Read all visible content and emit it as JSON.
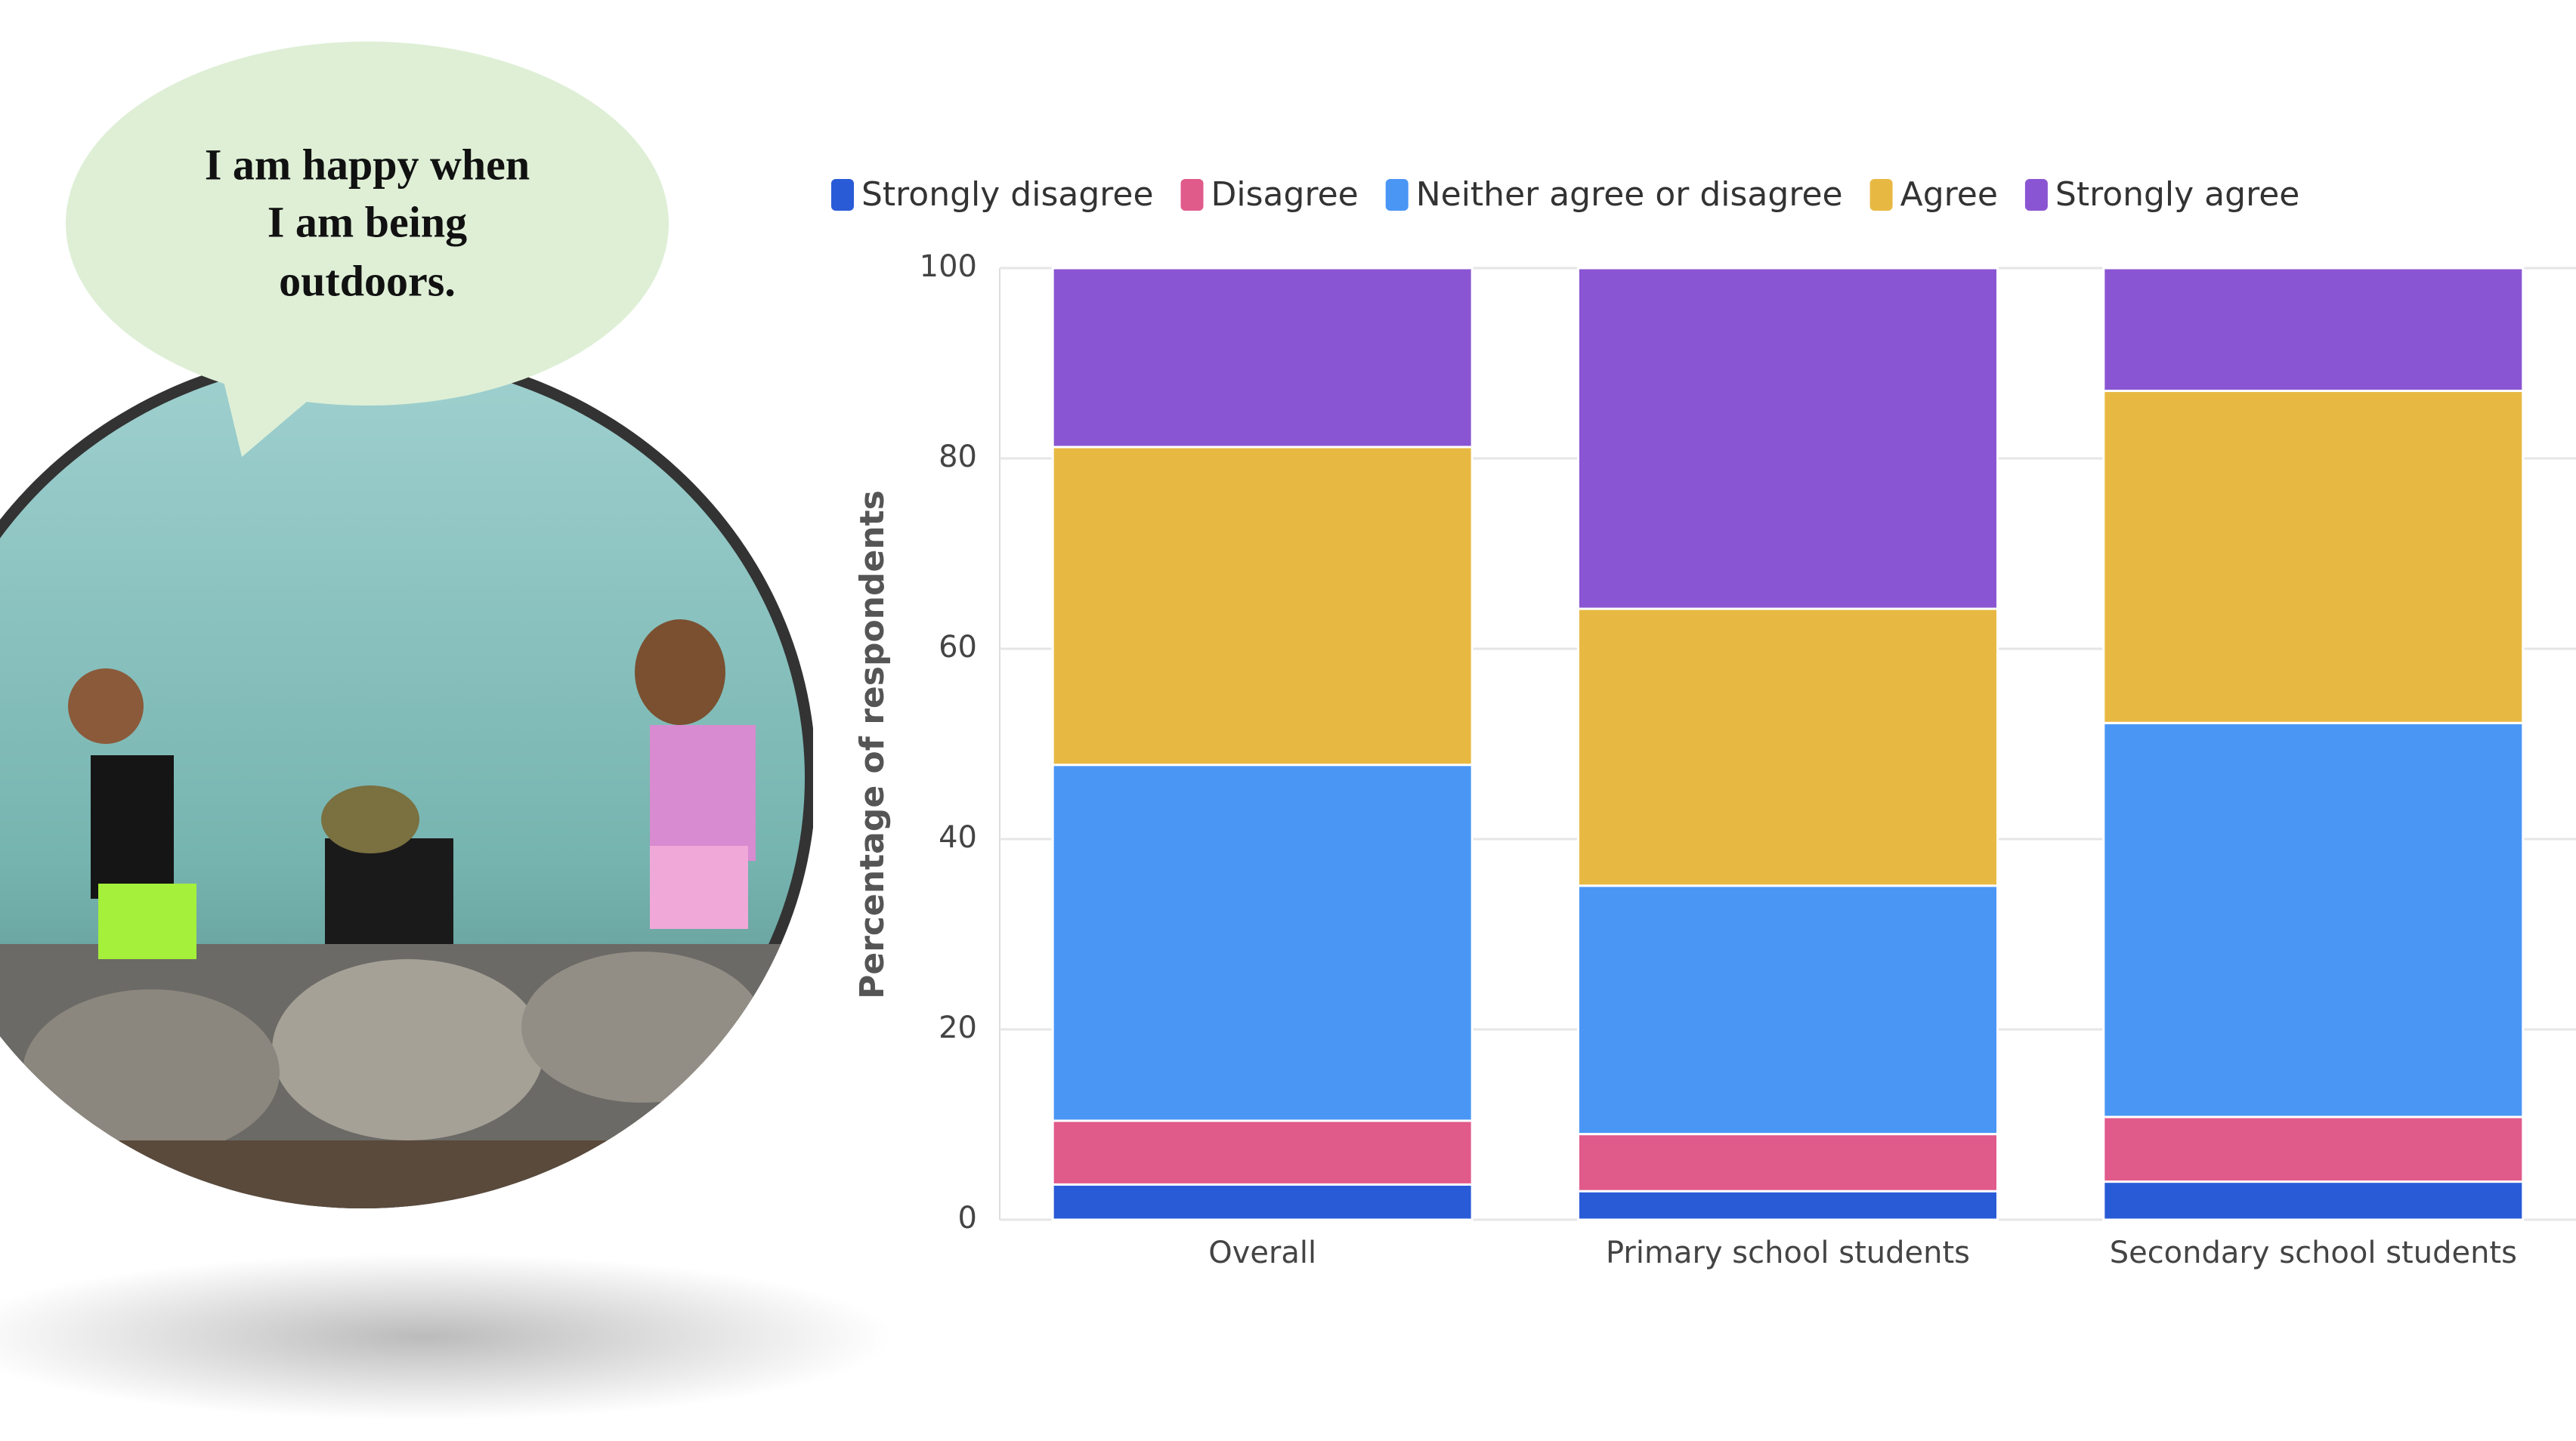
{
  "chart_data": {
    "type": "stacked_bar",
    "annotations": [
      "I am happy when",
      "I am being",
      "outdoors."
    ],
    "y_label": "Percentage of respondents",
    "categories": [
      "Overall",
      "Primary school students",
      "Secondary school students"
    ],
    "series": [
      {
        "name": "Strongly disagree",
        "color": "#2a5bd7",
        "values": [
          3.7,
          3.0,
          4.0
        ]
      },
      {
        "name": "Disagree",
        "color": "#e05a8a",
        "values": [
          6.7,
          6.0,
          6.8
        ]
      },
      {
        "name": "Neither agree or disagree",
        "color": "#4a96f5",
        "values": [
          37.4,
          26.1,
          41.4
        ]
      },
      {
        "name": "Agree",
        "color": "#e8b942",
        "values": [
          33.4,
          29.1,
          34.9
        ]
      },
      {
        "name": "Strongly agree",
        "color": "#8a55d2",
        "values": [
          18.8,
          35.8,
          12.9
        ]
      }
    ],
    "ylim": [
      0,
      100
    ],
    "yticks": [
      0,
      20,
      40,
      60,
      80,
      100
    ],
    "grid": true
  }
}
